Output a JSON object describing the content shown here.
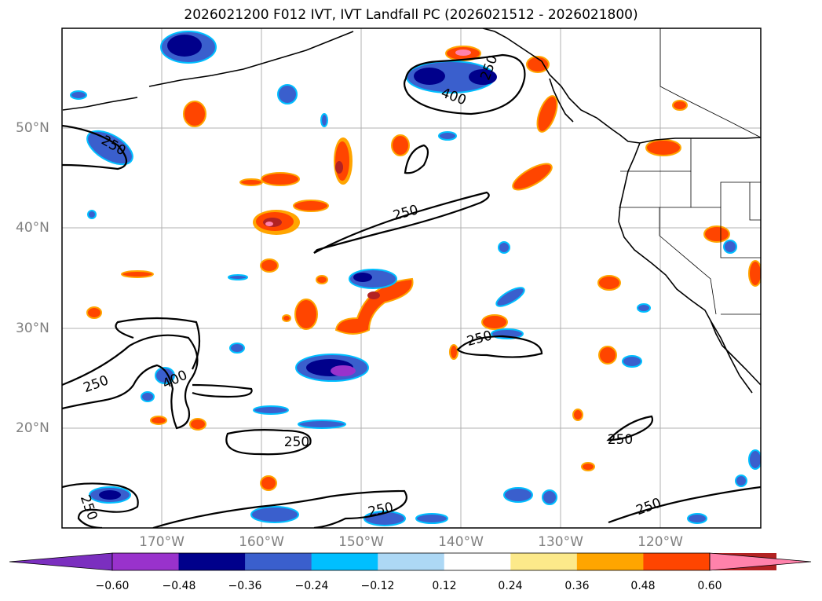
{
  "title": "2026021200 F012 IVT, IVT Landfall PC (2026021512 - 2026021800)",
  "map": {
    "lat_labels": [
      "50°N",
      "40°N",
      "30°N",
      "20°N"
    ],
    "lon_labels": [
      "170°W",
      "160°W",
      "150°W",
      "140°W",
      "130°W",
      "120°W"
    ],
    "contour_labels": [
      "250",
      "400",
      "250",
      "250",
      "400",
      "250",
      "250",
      "250",
      "250",
      "250",
      "250",
      "250"
    ]
  },
  "colorbar": {
    "ticks": [
      "−0.60",
      "−0.48",
      "−0.36",
      "−0.24",
      "−0.12",
      "0.12",
      "0.24",
      "0.36",
      "0.48",
      "0.60"
    ],
    "colors": [
      "#7b2fbf",
      "#9932cc",
      "#00008b",
      "#3a5fcd",
      "#00bfff",
      "#add8f5",
      "#ffffff",
      "#fce98a",
      "#ffa500",
      "#ff4500",
      "#b22222",
      "#ff82ab"
    ]
  }
}
